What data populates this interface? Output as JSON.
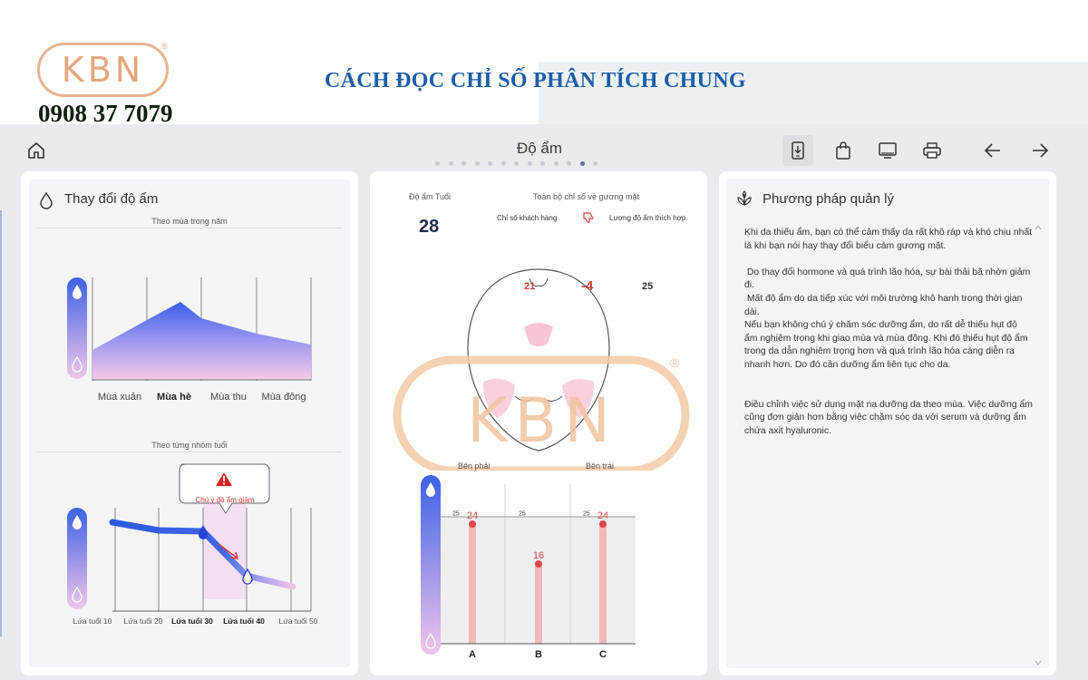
{
  "banner": {
    "logo_text": "KBN",
    "logo_mark": "®",
    "phone": "0908 37 7079",
    "title": "CÁCH ĐỌC CHỈ SỐ PHÂN TÍCH CHUNG"
  },
  "topbar": {
    "page_name": "Độ ẩm",
    "dot_count": 13,
    "active_dot": 11,
    "icons": [
      "home-icon",
      "download-to-phone-icon",
      "shopping-bag-icon",
      "monitor-icon",
      "printer-icon",
      "arrow-left-icon",
      "arrow-right-icon"
    ]
  },
  "moisture_change": {
    "title": "Thay đổi độ ẩm",
    "by_season": {
      "subtitle": "Theo mùa trong năm",
      "labels": [
        "Mùa xuân",
        "Mùa hè",
        "Mùa thu",
        "Mùa đông"
      ],
      "highlight": "Mùa hè"
    },
    "by_age": {
      "subtitle": "Theo từng nhóm tuổi",
      "labels": [
        "Lứa tuổi 10",
        "Lứa tuổi 20",
        "Lứa tuổi 30",
        "Lứa tuổi 40",
        "Lứa tuổi 50"
      ],
      "highlight": [
        "Lứa tuổi 30",
        "Lứa tuổi 40"
      ],
      "callout": "Chú ý độ ẩm giảm"
    }
  },
  "moisture_center": {
    "age_label": "Độ ẩm Tuổi",
    "age_value": "28",
    "overall_label": "Toàn bộ chỉ số về gương mặt",
    "customer_label": "Chỉ số khách hàng",
    "customer_value": "21",
    "diff_value": "-4",
    "suitable_label": "Lượng độ ẩm thích hợp",
    "suitable_value": "25",
    "watermark_text": "KBN",
    "watermark_mark": "®",
    "right_label": "Bên phải",
    "left_label": "Bên trái",
    "bars": [
      {
        "label": "A",
        "value": 24,
        "ref": 25
      },
      {
        "label": "B",
        "value": 16,
        "ref": 25
      },
      {
        "label": "C",
        "value": 24,
        "ref": 25
      }
    ],
    "bar_max": 32
  },
  "management": {
    "title": "Phương pháp quản lý",
    "text": "Khi da thiếu ẩm, bạn có thể cảm thấy da rất khô ráp và khó chịu nhất là khi bạn nói hay thay đổi biểu cảm gương mặt.\n\n Do thay đổi hormone và quá trình lão hóa, sự bài thải bã nhờn giảm đi.\n Mất độ ẩm do da tiếp xúc với môi trường khô hanh trong thời gian dài.\nNếu bạn không chú ý chăm sóc dưỡng ẩm, do rất dễ thiếu hụt độ ẩm nghiêm trọng khi giao mùa và mùa đông. Khi đó thiếu hụt độ ẩm trong da dẫn nghiêm trọng hơn và quá trình lão hóa càng diễn ra nhanh hơn. Do đó cần dưỡng ẩm liên tục cho da.\n\n\nĐiều chỉnh việc sử dụng mặt nạ dưỡng da theo mùa. Việc dưỡng ẩm cũng đơn giản hơn bằng việc chăm sóc da với serum và dưỡng ẩm chứa axit hyaluronic."
  }
}
